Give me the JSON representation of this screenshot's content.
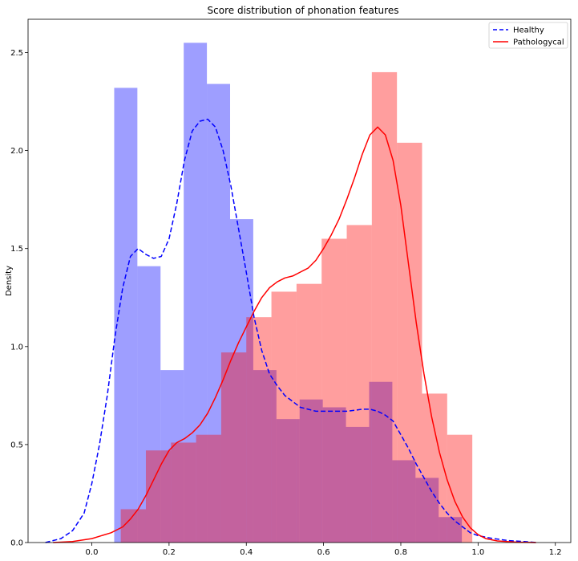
{
  "chart_data": {
    "type": "bar",
    "title": "Score distribution of phonation features",
    "xlabel": "",
    "ylabel": "Density",
    "xlim": [
      -0.165,
      1.24
    ],
    "ylim": [
      0,
      2.67
    ],
    "xticks": [
      "0.0",
      "0.2",
      "0.4",
      "0.6",
      "0.8",
      "1.0",
      "1.2"
    ],
    "yticks": [
      "0.0",
      "0.5",
      "1.0",
      "1.5",
      "2.0",
      "2.5"
    ],
    "grid": false,
    "legend_position": "top-right",
    "legend": [
      {
        "label": "Healthy",
        "line_style": "dashed",
        "color": "#0000ff"
      },
      {
        "label": "Pathologycal",
        "line_style": "solid",
        "color": "#ff0000"
      }
    ],
    "histograms": [
      {
        "series": "Healthy",
        "color": "#0000ff",
        "opacity": 0.38,
        "bin_edges": [
          0.058,
          0.118,
          0.178,
          0.238,
          0.298,
          0.358,
          0.418,
          0.478,
          0.538,
          0.598,
          0.658,
          0.718,
          0.778,
          0.838,
          0.898,
          0.958
        ],
        "values": [
          2.32,
          1.41,
          0.88,
          2.55,
          2.34,
          1.65,
          0.88,
          0.63,
          0.73,
          0.69,
          0.59,
          0.82,
          0.42,
          0.33,
          0.13
        ]
      },
      {
        "series": "Pathologycal",
        "color": "#ff0000",
        "opacity": 0.38,
        "bin_edges": [
          0.075,
          0.14,
          0.205,
          0.27,
          0.335,
          0.4,
          0.465,
          0.53,
          0.595,
          0.66,
          0.725,
          0.79,
          0.855,
          0.92,
          0.985
        ],
        "values": [
          0.17,
          0.47,
          0.51,
          0.55,
          0.97,
          1.15,
          1.28,
          1.32,
          1.55,
          1.62,
          2.4,
          2.04,
          0.76,
          0.55
        ]
      }
    ],
    "kde": [
      {
        "series": "Healthy",
        "color": "#0000ff",
        "line_style": "dashed",
        "x": [
          -0.12,
          -0.08,
          -0.05,
          -0.02,
          0.0,
          0.02,
          0.04,
          0.06,
          0.08,
          0.1,
          0.12,
          0.14,
          0.16,
          0.18,
          0.2,
          0.22,
          0.24,
          0.26,
          0.28,
          0.3,
          0.32,
          0.34,
          0.36,
          0.38,
          0.4,
          0.42,
          0.44,
          0.46,
          0.48,
          0.5,
          0.52,
          0.54,
          0.56,
          0.58,
          0.6,
          0.62,
          0.64,
          0.66,
          0.68,
          0.7,
          0.72,
          0.74,
          0.76,
          0.78,
          0.8,
          0.82,
          0.84,
          0.86,
          0.88,
          0.9,
          0.92,
          0.94,
          0.96,
          0.98,
          1.0,
          1.04,
          1.08,
          1.12,
          1.15
        ],
        "y": [
          0.0,
          0.02,
          0.06,
          0.15,
          0.3,
          0.5,
          0.75,
          1.05,
          1.3,
          1.46,
          1.5,
          1.47,
          1.45,
          1.46,
          1.55,
          1.73,
          1.95,
          2.1,
          2.15,
          2.16,
          2.12,
          2.0,
          1.82,
          1.6,
          1.38,
          1.15,
          0.98,
          0.86,
          0.8,
          0.75,
          0.72,
          0.69,
          0.68,
          0.67,
          0.67,
          0.67,
          0.67,
          0.67,
          0.675,
          0.68,
          0.68,
          0.67,
          0.65,
          0.62,
          0.55,
          0.48,
          0.4,
          0.33,
          0.26,
          0.2,
          0.15,
          0.11,
          0.08,
          0.05,
          0.035,
          0.02,
          0.01,
          0.005,
          0.0
        ]
      },
      {
        "series": "Pathologycal",
        "color": "#ff0000",
        "line_style": "solid",
        "x": [
          -0.1,
          -0.05,
          0.0,
          0.05,
          0.08,
          0.1,
          0.12,
          0.14,
          0.16,
          0.18,
          0.2,
          0.22,
          0.24,
          0.26,
          0.28,
          0.3,
          0.32,
          0.34,
          0.36,
          0.38,
          0.4,
          0.42,
          0.44,
          0.46,
          0.48,
          0.5,
          0.52,
          0.54,
          0.56,
          0.58,
          0.6,
          0.62,
          0.64,
          0.66,
          0.68,
          0.7,
          0.72,
          0.74,
          0.76,
          0.78,
          0.8,
          0.82,
          0.84,
          0.86,
          0.88,
          0.9,
          0.92,
          0.94,
          0.96,
          0.98,
          1.0,
          1.02,
          1.05,
          1.1,
          1.15
        ],
        "y": [
          0.0,
          0.005,
          0.02,
          0.05,
          0.08,
          0.12,
          0.17,
          0.24,
          0.32,
          0.4,
          0.47,
          0.51,
          0.53,
          0.56,
          0.6,
          0.66,
          0.74,
          0.83,
          0.93,
          1.02,
          1.1,
          1.18,
          1.25,
          1.3,
          1.33,
          1.35,
          1.36,
          1.38,
          1.4,
          1.44,
          1.5,
          1.57,
          1.65,
          1.75,
          1.86,
          1.98,
          2.08,
          2.12,
          2.08,
          1.95,
          1.72,
          1.42,
          1.12,
          0.86,
          0.64,
          0.46,
          0.32,
          0.21,
          0.13,
          0.075,
          0.04,
          0.02,
          0.008,
          0.002,
          0.0
        ]
      }
    ]
  }
}
